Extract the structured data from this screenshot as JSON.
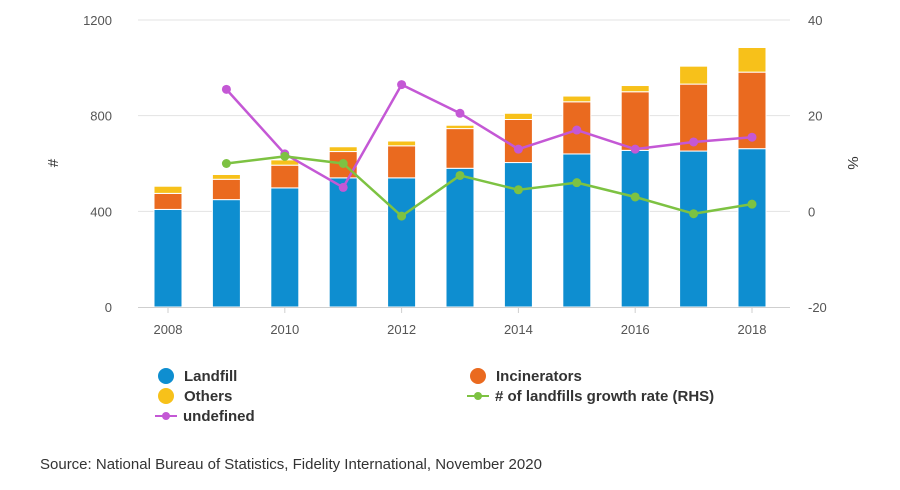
{
  "chart_data": {
    "type": "bar",
    "stacked": true,
    "categories": [
      "2008",
      "2009",
      "2010",
      "2011",
      "2012",
      "2013",
      "2014",
      "2015",
      "2016",
      "2017",
      "2018"
    ],
    "x_tick_labels": [
      "2008",
      "2010",
      "2012",
      "2014",
      "2016",
      "2018"
    ],
    "series": [
      {
        "name": "Landfill",
        "color": "#0e8ed0",
        "values": [
          408,
          449,
          498,
          540,
          540,
          580,
          604,
          640,
          655,
          652,
          662
        ]
      },
      {
        "name": "Incinerators",
        "color": "#ea6a1f",
        "values": [
          67,
          85,
          95,
          110,
          134,
          166,
          180,
          218,
          245,
          280,
          320
        ]
      },
      {
        "name": "Others",
        "color": "#f7c11a",
        "values": [
          30,
          20,
          22,
          20,
          20,
          14,
          26,
          24,
          26,
          75,
          103
        ]
      }
    ],
    "lines": [
      {
        "name": "undefined",
        "color": "#c458d5",
        "axis": "right",
        "values": [
          null,
          25.5,
          12.0,
          5.0,
          26.5,
          20.5,
          13.0,
          17.0,
          13.0,
          14.5,
          15.5
        ]
      },
      {
        "name": "# of landfills growth rate (RHS)",
        "color": "#7dc242",
        "axis": "right",
        "values": [
          null,
          10.0,
          11.5,
          10.0,
          -1.0,
          7.5,
          4.5,
          6.0,
          3.0,
          -0.5,
          1.5
        ]
      }
    ],
    "ylabel": "#",
    "ylabel_right": "%",
    "ylim": [
      0,
      1200
    ],
    "yticks": [
      0,
      400,
      800,
      1200
    ],
    "ylim_right": [
      -20,
      40
    ],
    "yticks_right": [
      -20,
      0,
      20,
      40
    ],
    "grid": true,
    "legend_position": "bottom"
  },
  "legend": {
    "landfill": "Landfill",
    "incinerators": "Incinerators",
    "others": "Others",
    "growth": "# of landfills growth rate (RHS)",
    "undefined": "undefined"
  },
  "source": "Source: National Bureau of Statistics, Fidelity International, November 2020"
}
